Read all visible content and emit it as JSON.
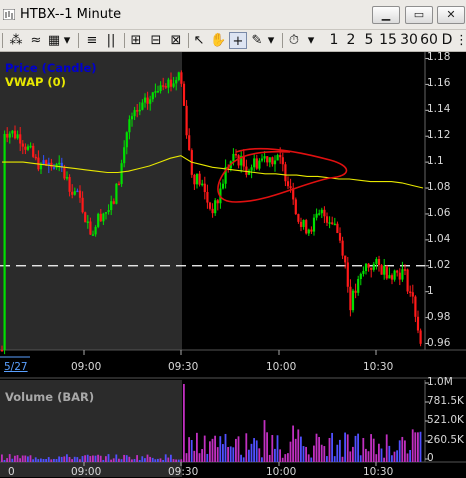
{
  "window": {
    "title": "HTBX--1 Minute",
    "minimize": "▁",
    "restore": "▭",
    "close": "✕"
  },
  "toolbar": {
    "buttons": [
      "≡",
      "||",
      "⊞",
      "⊟",
      "⊠",
      "↖",
      "+",
      "✎",
      "▾",
      "⏱",
      "▾"
    ],
    "intervals": [
      "1",
      "2",
      "5",
      "15",
      "30",
      "60",
      "D"
    ]
  },
  "price_panel": {
    "legend": [
      {
        "label": "Price (Candle)",
        "color": "#0000cc"
      },
      {
        "label": "VWAP (0)",
        "color": "#e8e800"
      }
    ],
    "y_ticks": [
      "1.18",
      "1.16",
      "1.14",
      "1.12",
      "1.1",
      "1.08",
      "1.06",
      "1.04",
      "1.02",
      "1",
      "0.98",
      "0.96"
    ],
    "date_label": "5/27",
    "x_ticks": [
      "09:00",
      "09:30",
      "10:00",
      "10:30"
    ]
  },
  "volume_panel": {
    "legend": "Volume (BAR)",
    "y_ticks": [
      "1.0M",
      "781.5K",
      "521.0K",
      "260.5K",
      "0"
    ],
    "x_ticks": [
      "09:00",
      "09:30",
      "10:00",
      "10:30"
    ],
    "bottom_label": "0"
  },
  "chart_data": {
    "type": "candlestick",
    "ylim": [
      0.955,
      1.185
    ],
    "reference_line": 1.02,
    "vwap_start_after_open": 1.097,
    "vwap": [
      1.1,
      1.1,
      1.1,
      1.099,
      1.098,
      1.097,
      1.096,
      1.095,
      1.094,
      1.093,
      1.092,
      1.092,
      1.093,
      1.095,
      1.097,
      1.1,
      1.103,
      1.105,
      1.1,
      1.098,
      1.096,
      1.095,
      1.094,
      1.093,
      1.092,
      1.091,
      1.091,
      1.09,
      1.09,
      1.089,
      1.089,
      1.088,
      1.087,
      1.087,
      1.086,
      1.085,
      1.085,
      1.085,
      1.084,
      1.082,
      1.08
    ],
    "volume_ylim": [
      0,
      1.0
    ]
  }
}
